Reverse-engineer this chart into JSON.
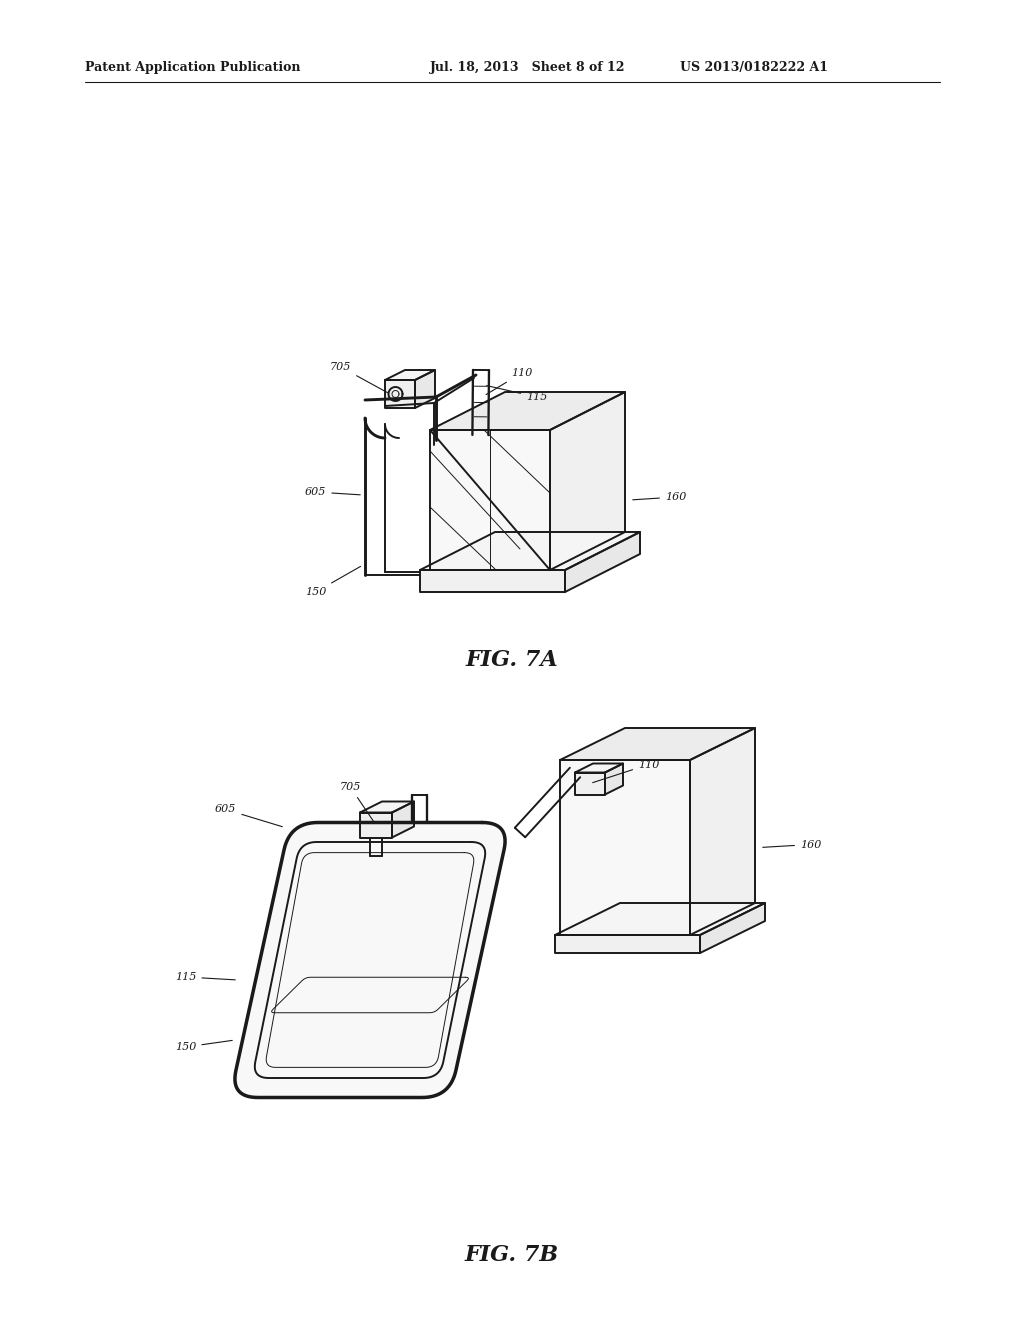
{
  "bg_color": "#ffffff",
  "lc": "#1a1a1a",
  "lw": 1.4,
  "tlw": 0.7,
  "header_left": "Patent Application Publication",
  "header_mid": "Jul. 18, 2013   Sheet 8 of 12",
  "header_right": "US 2013/0182222 A1",
  "fig7a_caption": "FIG. 7A",
  "fig7b_caption": "FIG. 7B"
}
